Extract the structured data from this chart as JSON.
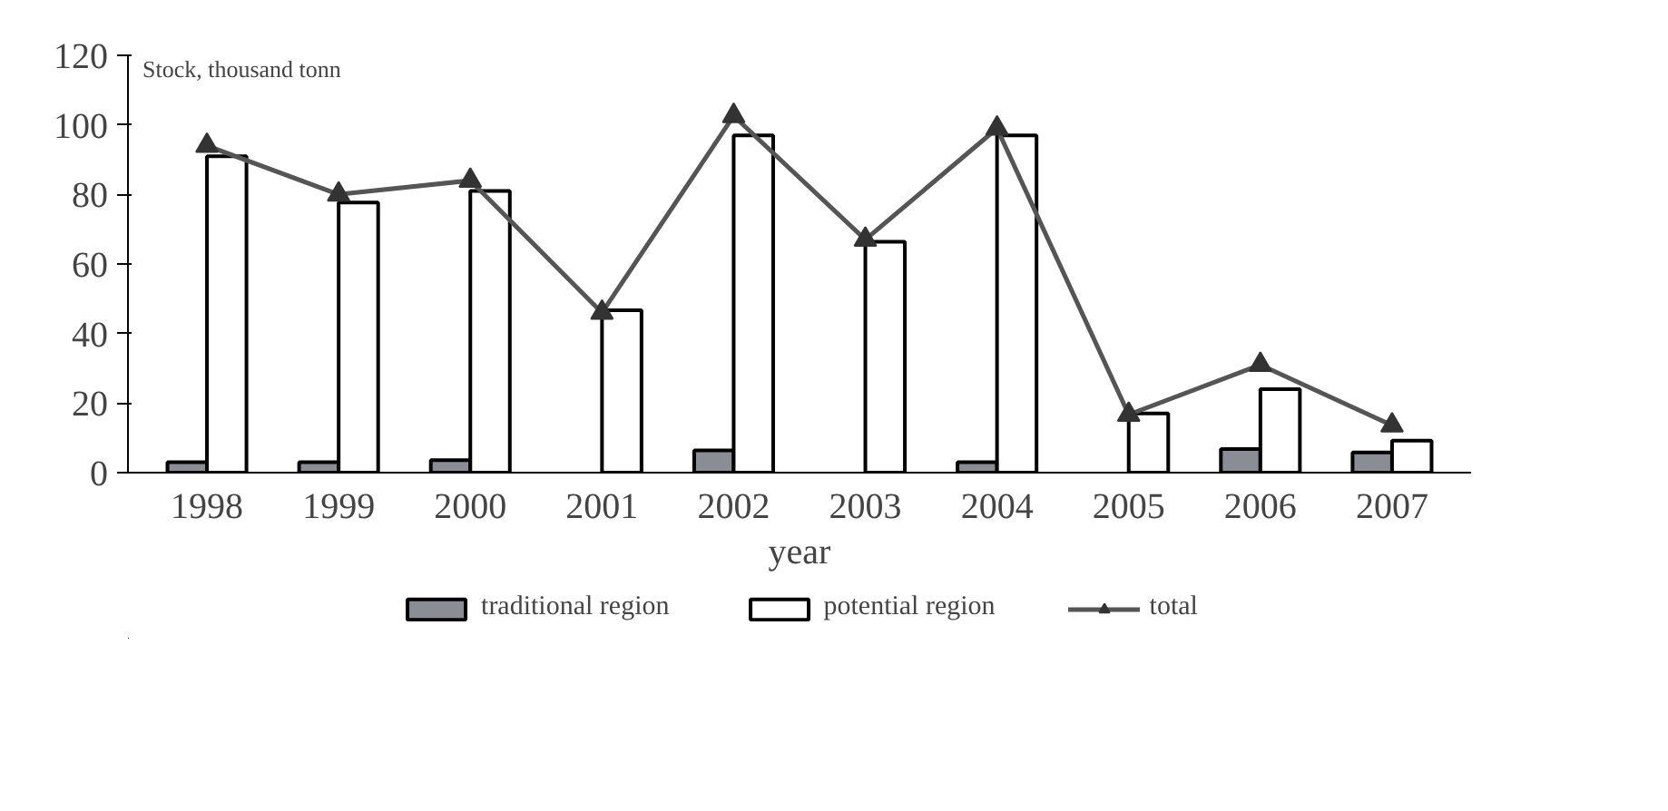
{
  "chart_data": {
    "type": "bar",
    "ylabel": "Stock, thousand tonn",
    "xlabel": "year",
    "categories": [
      "1998",
      "1999",
      "2000",
      "2001",
      "2002",
      "2003",
      "2004",
      "2005",
      "2006",
      "2007"
    ],
    "series": [
      {
        "name": "traditional region",
        "color": "#8a8d93",
        "values": [
          3,
          3,
          3.6,
          null,
          6.4,
          null,
          3,
          null,
          6.8,
          5.8
        ]
      },
      {
        "name": "potential region",
        "color": "#ffffff",
        "values": [
          91,
          77.7,
          81,
          46.7,
          97,
          66.4,
          97,
          17,
          24,
          9.2
        ]
      },
      {
        "name": "total",
        "type": "line",
        "color": "#555555",
        "marker": "triangle",
        "values": [
          94,
          80,
          84,
          46,
          102.6,
          67,
          99,
          16.7,
          31,
          13.6
        ]
      }
    ],
    "ylim": [
      0,
      120
    ],
    "yticks": [
      0,
      20,
      40,
      60,
      80,
      100,
      120
    ],
    "grid": false,
    "legend": "bottom"
  }
}
